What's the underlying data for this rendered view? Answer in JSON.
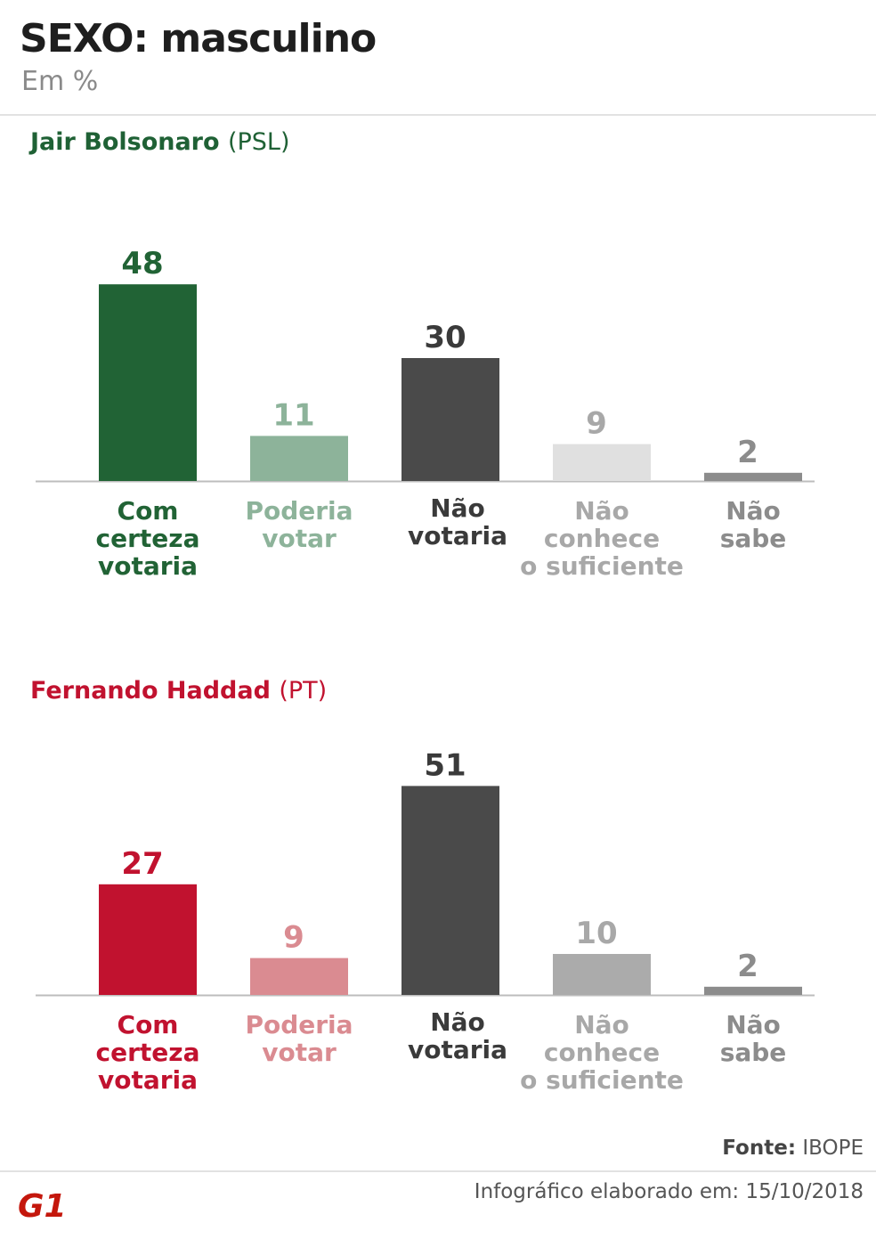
{
  "header": {
    "title": "SEXO: masculino",
    "subtitle": "Em %"
  },
  "candidates": [
    {
      "name": "Jair Bolsonaro",
      "party": "(PSL)",
      "color": "#1f6135"
    },
    {
      "name": "Fernando Haddad",
      "party": "(PT)",
      "color": "#c1122f"
    }
  ],
  "chart_data": [
    {
      "type": "bar",
      "title": "Jair Bolsonaro (PSL)",
      "categories": [
        "Com certeza votaria",
        "Poderia votar",
        "Não votaria",
        "Não conhece o suficiente",
        "Não sabe"
      ],
      "values": [
        48,
        11,
        30,
        9,
        2
      ],
      "colors": [
        "#216335",
        "#8db39a",
        "#4a4a4a",
        "#e0e0e0",
        "#8c8c8c"
      ],
      "label_colors": [
        "#216335",
        "#8db39a",
        "#3a3a3a",
        "#a8a8a8",
        "#8c8c8c"
      ]
    },
    {
      "type": "bar",
      "title": "Fernando Haddad (PT)",
      "categories": [
        "Com certeza votaria",
        "Poderia votar",
        "Não votaria",
        "Não conhece o suficiente",
        "Não sabe"
      ],
      "values": [
        27,
        9,
        51,
        10,
        2
      ],
      "colors": [
        "#c1122f",
        "#da8b91",
        "#4a4a4a",
        "#ababab",
        "#8c8c8c"
      ],
      "label_colors": [
        "#c1122f",
        "#da8b91",
        "#3a3a3a",
        "#a8a8a8",
        "#8c8c8c"
      ]
    }
  ],
  "category_lines": [
    [
      "Com",
      "certeza",
      "votaria"
    ],
    [
      "Poderia",
      "votar"
    ],
    [
      "Não",
      "votaria"
    ],
    [
      "Não",
      "conhece",
      "o suficiente"
    ],
    [
      "Não",
      "sabe"
    ]
  ],
  "source": {
    "label": "Fonte:",
    "value": "IBOPE"
  },
  "footer": {
    "text": "Infográfico elaborado em: 15/10/2018"
  },
  "logo": {
    "text": "G1",
    "color": "#c4170c"
  }
}
